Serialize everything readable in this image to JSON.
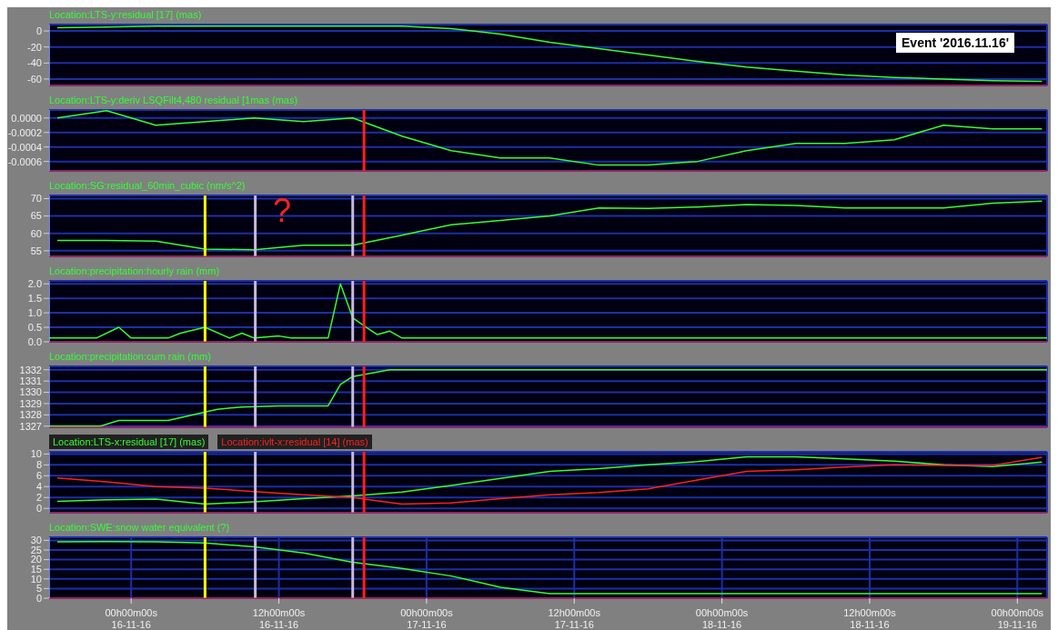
{
  "chart_data": [
    {
      "type": "line",
      "title": "Location:LTS-y:residual [17] (mas)",
      "annotations": [
        "Event '2016.11.16'"
      ],
      "x": [
        "2016-11-15T18:00",
        "2016-11-15T22:00",
        "2016-11-16T02:00",
        "2016-11-16T06:00",
        "2016-11-16T10:00",
        "2016-11-16T14:00",
        "2016-11-16T18:00",
        "2016-11-16T22:00",
        "2016-11-17T02:00",
        "2016-11-17T06:00",
        "2016-11-17T10:00",
        "2016-11-17T14:00",
        "2016-11-17T18:00",
        "2016-11-17T22:00",
        "2016-11-18T02:00",
        "2016-11-18T06:00",
        "2016-11-18T10:00",
        "2016-11-18T14:00",
        "2016-11-18T18:00",
        "2016-11-18T22:00",
        "2016-11-19T02:00"
      ],
      "series": [
        {
          "color": "#33ff33",
          "values": [
            4,
            5,
            6,
            6,
            6,
            6,
            6,
            6,
            3,
            -4,
            -14,
            -22,
            -30,
            -38,
            -45,
            -50,
            -55,
            -58,
            -60,
            -62,
            -63
          ]
        }
      ],
      "xlim": [
        "2016-11-15T17:20",
        "2016-11-19T02:25"
      ],
      "xticks": [
        "2016-11-16T00:00",
        "2016-11-16T12:00",
        "2016-11-17T00:00",
        "2016-11-17T12:00",
        "2016-11-18T00:00",
        "2016-11-18T12:00",
        "2016-11-19T00:00"
      ],
      "ylim": [
        -68,
        8
      ],
      "yticks": [
        -60,
        -40,
        -20,
        0
      ],
      "grid": true,
      "tick_labels": "y"
    },
    {
      "type": "line",
      "title": "Location:LTS-y:deriv LSQFilt4,480 residual [1mas (mas)",
      "x": [
        "2016-11-15T18:00",
        "2016-11-15T22:00",
        "2016-11-16T02:00",
        "2016-11-16T06:00",
        "2016-11-16T10:00",
        "2016-11-16T14:00",
        "2016-11-16T18:00",
        "2016-11-16T22:00",
        "2016-11-17T02:00",
        "2016-11-17T06:00",
        "2016-11-17T10:00",
        "2016-11-17T14:00",
        "2016-11-17T18:00",
        "2016-11-17T22:00",
        "2016-11-18T02:00",
        "2016-11-18T06:00",
        "2016-11-18T10:00",
        "2016-11-18T14:00",
        "2016-11-18T18:00",
        "2016-11-18T22:00",
        "2016-11-19T02:00"
      ],
      "series": [
        {
          "color": "#33ff33",
          "values": [
            0,
            0.0001,
            -0.0001,
            -5e-05,
            0,
            -5e-05,
            0,
            -0.00025,
            -0.00045,
            -0.00055,
            -0.00055,
            -0.00065,
            -0.00065,
            -0.0006,
            -0.00045,
            -0.00035,
            -0.00035,
            -0.0003,
            -0.0001,
            -0.00015,
            -0.00015
          ]
        }
      ],
      "xlim": [
        "2016-11-15T17:20",
        "2016-11-19T02:25"
      ],
      "xticks": [
        "2016-11-16T00:00",
        "2016-11-16T12:00",
        "2016-11-17T00:00",
        "2016-11-17T12:00",
        "2016-11-18T00:00",
        "2016-11-18T12:00",
        "2016-11-19T00:00"
      ],
      "ylim": [
        -0.00073,
        0.00011
      ],
      "yticks": [
        {
          "value": -0.0006,
          "label": "-0.0006"
        },
        {
          "value": -0.0004,
          "label": "-0.0004"
        },
        {
          "value": -0.0002,
          "label": "-0.0002"
        },
        {
          "value": 0,
          "label": "0.0000"
        }
      ],
      "grid": true,
      "tick_labels": "y",
      "ref_lines": [
        {
          "axis": "x",
          "value": "2016-11-16T18:55",
          "color": "#ff2020"
        }
      ]
    },
    {
      "type": "line",
      "title": "Location:SG:residual_60min_cubic (nm/s^2)",
      "annotations": [
        "?"
      ],
      "x": [
        "2016-11-15T18:00",
        "2016-11-15T22:00",
        "2016-11-16T02:00",
        "2016-11-16T06:00",
        "2016-11-16T10:00",
        "2016-11-16T14:00",
        "2016-11-16T18:00",
        "2016-11-16T22:00",
        "2016-11-17T02:00",
        "2016-11-17T06:00",
        "2016-11-17T10:00",
        "2016-11-17T14:00",
        "2016-11-17T18:00",
        "2016-11-17T22:00",
        "2016-11-18T02:00",
        "2016-11-18T06:00",
        "2016-11-18T10:00",
        "2016-11-18T14:00",
        "2016-11-18T18:00",
        "2016-11-18T22:00",
        "2016-11-19T02:00"
      ],
      "series": [
        {
          "color": "#33ff33",
          "values": [
            58.0,
            58.0,
            57.8,
            55.5,
            55.3,
            56.6,
            56.6,
            59.5,
            62.5,
            63.7,
            65,
            67.3,
            67.2,
            67.6,
            68.3,
            68.0,
            67.3,
            67.3,
            67.3,
            68.7,
            69.3
          ]
        }
      ],
      "xlim": [
        "2016-11-15T17:20",
        "2016-11-19T02:25"
      ],
      "xticks": [
        "2016-11-16T00:00",
        "2016-11-16T12:00",
        "2016-11-17T00:00",
        "2016-11-17T12:00",
        "2016-11-18T00:00",
        "2016-11-18T12:00",
        "2016-11-19T00:00"
      ],
      "ylim": [
        53.4,
        70.9
      ],
      "yticks": [
        55,
        60,
        65,
        70
      ],
      "grid": true,
      "tick_labels": "y",
      "ref_lines": [
        {
          "axis": "x",
          "value": "2016-11-16T06:00",
          "color": "#ffff00"
        },
        {
          "axis": "x",
          "value": "2016-11-16T10:05",
          "color": "#c8b8e0"
        },
        {
          "axis": "x",
          "value": "2016-11-16T18:00",
          "color": "#c8b8e0"
        },
        {
          "axis": "x",
          "value": "2016-11-16T18:55",
          "color": "#ff2020"
        }
      ]
    },
    {
      "type": "line",
      "title": "Location:precipitation:hourly rain (mm)",
      "series": [
        {
          "color": "#33ff33",
          "x": [
            "2016-11-15T17:20",
            "2016-11-15T21:10",
            "2016-11-15T23:00",
            "2016-11-16T00:00",
            "2016-11-16T03:00",
            "2016-11-16T04:00",
            "2016-11-16T05:00",
            "2016-11-16T06:00",
            "2016-11-16T08:00",
            "2016-11-16T09:00",
            "2016-11-16T10:00",
            "2016-11-16T12:00",
            "2016-11-16T13:00",
            "2016-11-16T16:00",
            "2016-11-16T17:00",
            "2016-11-16T18:00",
            "2016-11-16T19:00",
            "2016-11-16T20:00",
            "2016-11-16T21:00",
            "2016-11-16T22:00",
            "2016-11-19T02:25"
          ],
          "values": [
            0.13,
            0.13,
            0.5,
            0.13,
            0.13,
            0.3,
            0.4,
            0.5,
            0.13,
            0.3,
            0.13,
            0.2,
            0.13,
            0.13,
            2.0,
            0.83,
            0.53,
            0.25,
            0.37,
            0.13,
            0.13
          ]
        }
      ],
      "xlim": [
        "2016-11-15T17:20",
        "2016-11-19T02:25"
      ],
      "xticks": [
        "2016-11-16T00:00",
        "2016-11-16T12:00",
        "2016-11-17T00:00",
        "2016-11-17T12:00",
        "2016-11-18T00:00",
        "2016-11-18T12:00",
        "2016-11-19T00:00"
      ],
      "ylim": [
        0,
        2.1
      ],
      "yticks": [
        {
          "value": 0,
          "label": "0.0"
        },
        {
          "value": 0.5,
          "label": "0.5"
        },
        {
          "value": 1,
          "label": "1.0"
        },
        {
          "value": 1.5,
          "label": "1.5"
        },
        {
          "value": 2,
          "label": "2.0"
        }
      ],
      "grid": true,
      "tick_labels": "y",
      "ref_lines": [
        {
          "axis": "x",
          "value": "2016-11-16T06:00",
          "color": "#ffff00"
        },
        {
          "axis": "x",
          "value": "2016-11-16T10:05",
          "color": "#c8b8e0"
        },
        {
          "axis": "x",
          "value": "2016-11-16T18:00",
          "color": "#c8b8e0"
        },
        {
          "axis": "x",
          "value": "2016-11-16T18:55",
          "color": "#ff2020"
        }
      ]
    },
    {
      "type": "line",
      "title": "Location:precipitation:cum rain (mm)",
      "series": [
        {
          "color": "#33ff33",
          "x": [
            "2016-11-15T17:20",
            "2016-11-15T21:30",
            "2016-11-15T23:00",
            "2016-11-16T03:00",
            "2016-11-16T07:00",
            "2016-11-16T09:00",
            "2016-11-16T12:00",
            "2016-11-16T16:00",
            "2016-11-16T17:00",
            "2016-11-16T18:00",
            "2016-11-16T19:00",
            "2016-11-16T21:00",
            "2016-11-19T02:25"
          ],
          "values": [
            1327.0,
            1327.0,
            1327.5,
            1327.5,
            1328.5,
            1328.7,
            1328.8,
            1328.8,
            1330.7,
            1331.4,
            1331.6,
            1332.0,
            1332.0
          ]
        }
      ],
      "xlim": [
        "2016-11-15T17:20",
        "2016-11-19T02:25"
      ],
      "xticks": [
        "2016-11-16T00:00",
        "2016-11-16T12:00",
        "2016-11-17T00:00",
        "2016-11-17T12:00",
        "2016-11-18T00:00",
        "2016-11-18T12:00",
        "2016-11-19T00:00"
      ],
      "ylim": [
        1326.9,
        1332.3
      ],
      "yticks": [
        1327,
        1328,
        1329,
        1330,
        1331,
        1332
      ],
      "grid": true,
      "tick_labels": "y",
      "ref_lines": [
        {
          "axis": "x",
          "value": "2016-11-16T06:00",
          "color": "#ffff00"
        },
        {
          "axis": "x",
          "value": "2016-11-16T10:05",
          "color": "#c8b8e0"
        },
        {
          "axis": "x",
          "value": "2016-11-16T18:00",
          "color": "#c8b8e0"
        },
        {
          "axis": "x",
          "value": "2016-11-16T18:55",
          "color": "#ff2020"
        }
      ]
    },
    {
      "type": "line",
      "legend": "top left",
      "x": [
        "2016-11-15T18:00",
        "2016-11-15T22:00",
        "2016-11-16T02:00",
        "2016-11-16T06:00",
        "2016-11-16T10:00",
        "2016-11-16T14:00",
        "2016-11-16T18:00",
        "2016-11-16T22:00",
        "2016-11-17T02:00",
        "2016-11-17T06:00",
        "2016-11-17T10:00",
        "2016-11-17T14:00",
        "2016-11-17T18:00",
        "2016-11-17T22:00",
        "2016-11-18T02:00",
        "2016-11-18T06:00",
        "2016-11-18T10:00",
        "2016-11-18T14:00",
        "2016-11-18T18:00",
        "2016-11-18T22:00",
        "2016-11-19T02:00"
      ],
      "series": [
        {
          "name": "Location:LTS-x:residual [17] (mas)",
          "color": "#33ff33",
          "values": [
            1.3,
            1.6,
            1.7,
            0.8,
            1.2,
            1.8,
            2.3,
            3.0,
            4.2,
            5.5,
            6.8,
            7.3,
            8.0,
            8.6,
            9.5,
            9.5,
            9.1,
            8.7,
            8.0,
            7.7,
            8.5
          ]
        },
        {
          "name": "Location:ivlt-x:residual [14] (mas)",
          "color": "#ff2020",
          "values": [
            5.6,
            4.9,
            4.0,
            3.7,
            3.1,
            2.5,
            2.0,
            0.8,
            1.0,
            1.8,
            2.5,
            2.9,
            3.6,
            5.2,
            6.8,
            7.1,
            7.6,
            8.0,
            7.9,
            7.9,
            9.4
          ]
        }
      ],
      "xlim": [
        "2016-11-15T17:20",
        "2016-11-19T02:25"
      ],
      "xticks": [
        "2016-11-16T00:00",
        "2016-11-16T12:00",
        "2016-11-17T00:00",
        "2016-11-17T12:00",
        "2016-11-18T00:00",
        "2016-11-18T12:00",
        "2016-11-19T00:00"
      ],
      "ylim": [
        -0.8,
        10.4
      ],
      "yticks": [
        0,
        2,
        4,
        6,
        8,
        10
      ],
      "grid": true,
      "tick_labels": "y",
      "ref_lines": [
        {
          "axis": "x",
          "value": "2016-11-16T06:00",
          "color": "#ffff00"
        },
        {
          "axis": "x",
          "value": "2016-11-16T10:05",
          "color": "#c8b8e0"
        },
        {
          "axis": "x",
          "value": "2016-11-16T18:00",
          "color": "#c8b8e0"
        },
        {
          "axis": "x",
          "value": "2016-11-16T18:55",
          "color": "#ff2020"
        }
      ]
    },
    {
      "type": "line",
      "title": "Location:SWE:snow water equivalent (?)",
      "x": [
        "2016-11-15T18:00",
        "2016-11-15T22:00",
        "2016-11-16T02:00",
        "2016-11-16T06:00",
        "2016-11-16T10:00",
        "2016-11-16T14:00",
        "2016-11-16T18:00",
        "2016-11-16T22:00",
        "2016-11-17T02:00",
        "2016-11-17T06:00",
        "2016-11-17T10:00",
        "2016-11-17T14:00",
        "2016-11-17T18:00",
        "2016-11-17T22:00",
        "2016-11-18T02:00",
        "2016-11-18T06:00",
        "2016-11-18T10:00",
        "2016-11-18T14:00",
        "2016-11-18T18:00",
        "2016-11-18T22:00",
        "2016-11-19T02:00"
      ],
      "series": [
        {
          "color": "#33ff33",
          "values": [
            29.2,
            29.4,
            29.2,
            28.7,
            26.6,
            23.5,
            18.6,
            15.5,
            11.5,
            5.7,
            2.4,
            2.4,
            2.4,
            2.4,
            2.4,
            2.4,
            2.4,
            2.4,
            2.4,
            2.4,
            2.4
          ]
        }
      ],
      "xlim": [
        "2016-11-15T17:20",
        "2016-11-19T02:25"
      ],
      "xticks": [
        {
          "value": "2016-11-16T00:00",
          "label": "00h00m00s\n16-11-16"
        },
        {
          "value": "2016-11-16T12:00",
          "label": "12h00m00s\n16-11-16"
        },
        {
          "value": "2016-11-17T00:00",
          "label": "00h00m00s\n17-11-16"
        },
        {
          "value": "2016-11-17T12:00",
          "label": "12h00m00s\n17-11-16"
        },
        {
          "value": "2016-11-18T00:00",
          "label": "00h00m00s\n18-11-16"
        },
        {
          "value": "2016-11-18T12:00",
          "label": "12h00m00s\n18-11-16"
        },
        {
          "value": "2016-11-19T00:00",
          "label": "00h00m00s\n19-11-16"
        }
      ],
      "ylim": [
        0,
        31.6
      ],
      "yticks": [
        0,
        5,
        10,
        15,
        20,
        25,
        30
      ],
      "grid": true,
      "ref_lines": [
        {
          "axis": "x",
          "value": "2016-11-16T06:00",
          "color": "#ffff00"
        },
        {
          "axis": "x",
          "value": "2016-11-16T10:05",
          "color": "#c8b8e0"
        },
        {
          "axis": "x",
          "value": "2016-11-16T18:00",
          "color": "#c8b8e0"
        },
        {
          "axis": "x",
          "value": "2016-11-16T18:55",
          "color": "#ff2020"
        }
      ]
    }
  ]
}
